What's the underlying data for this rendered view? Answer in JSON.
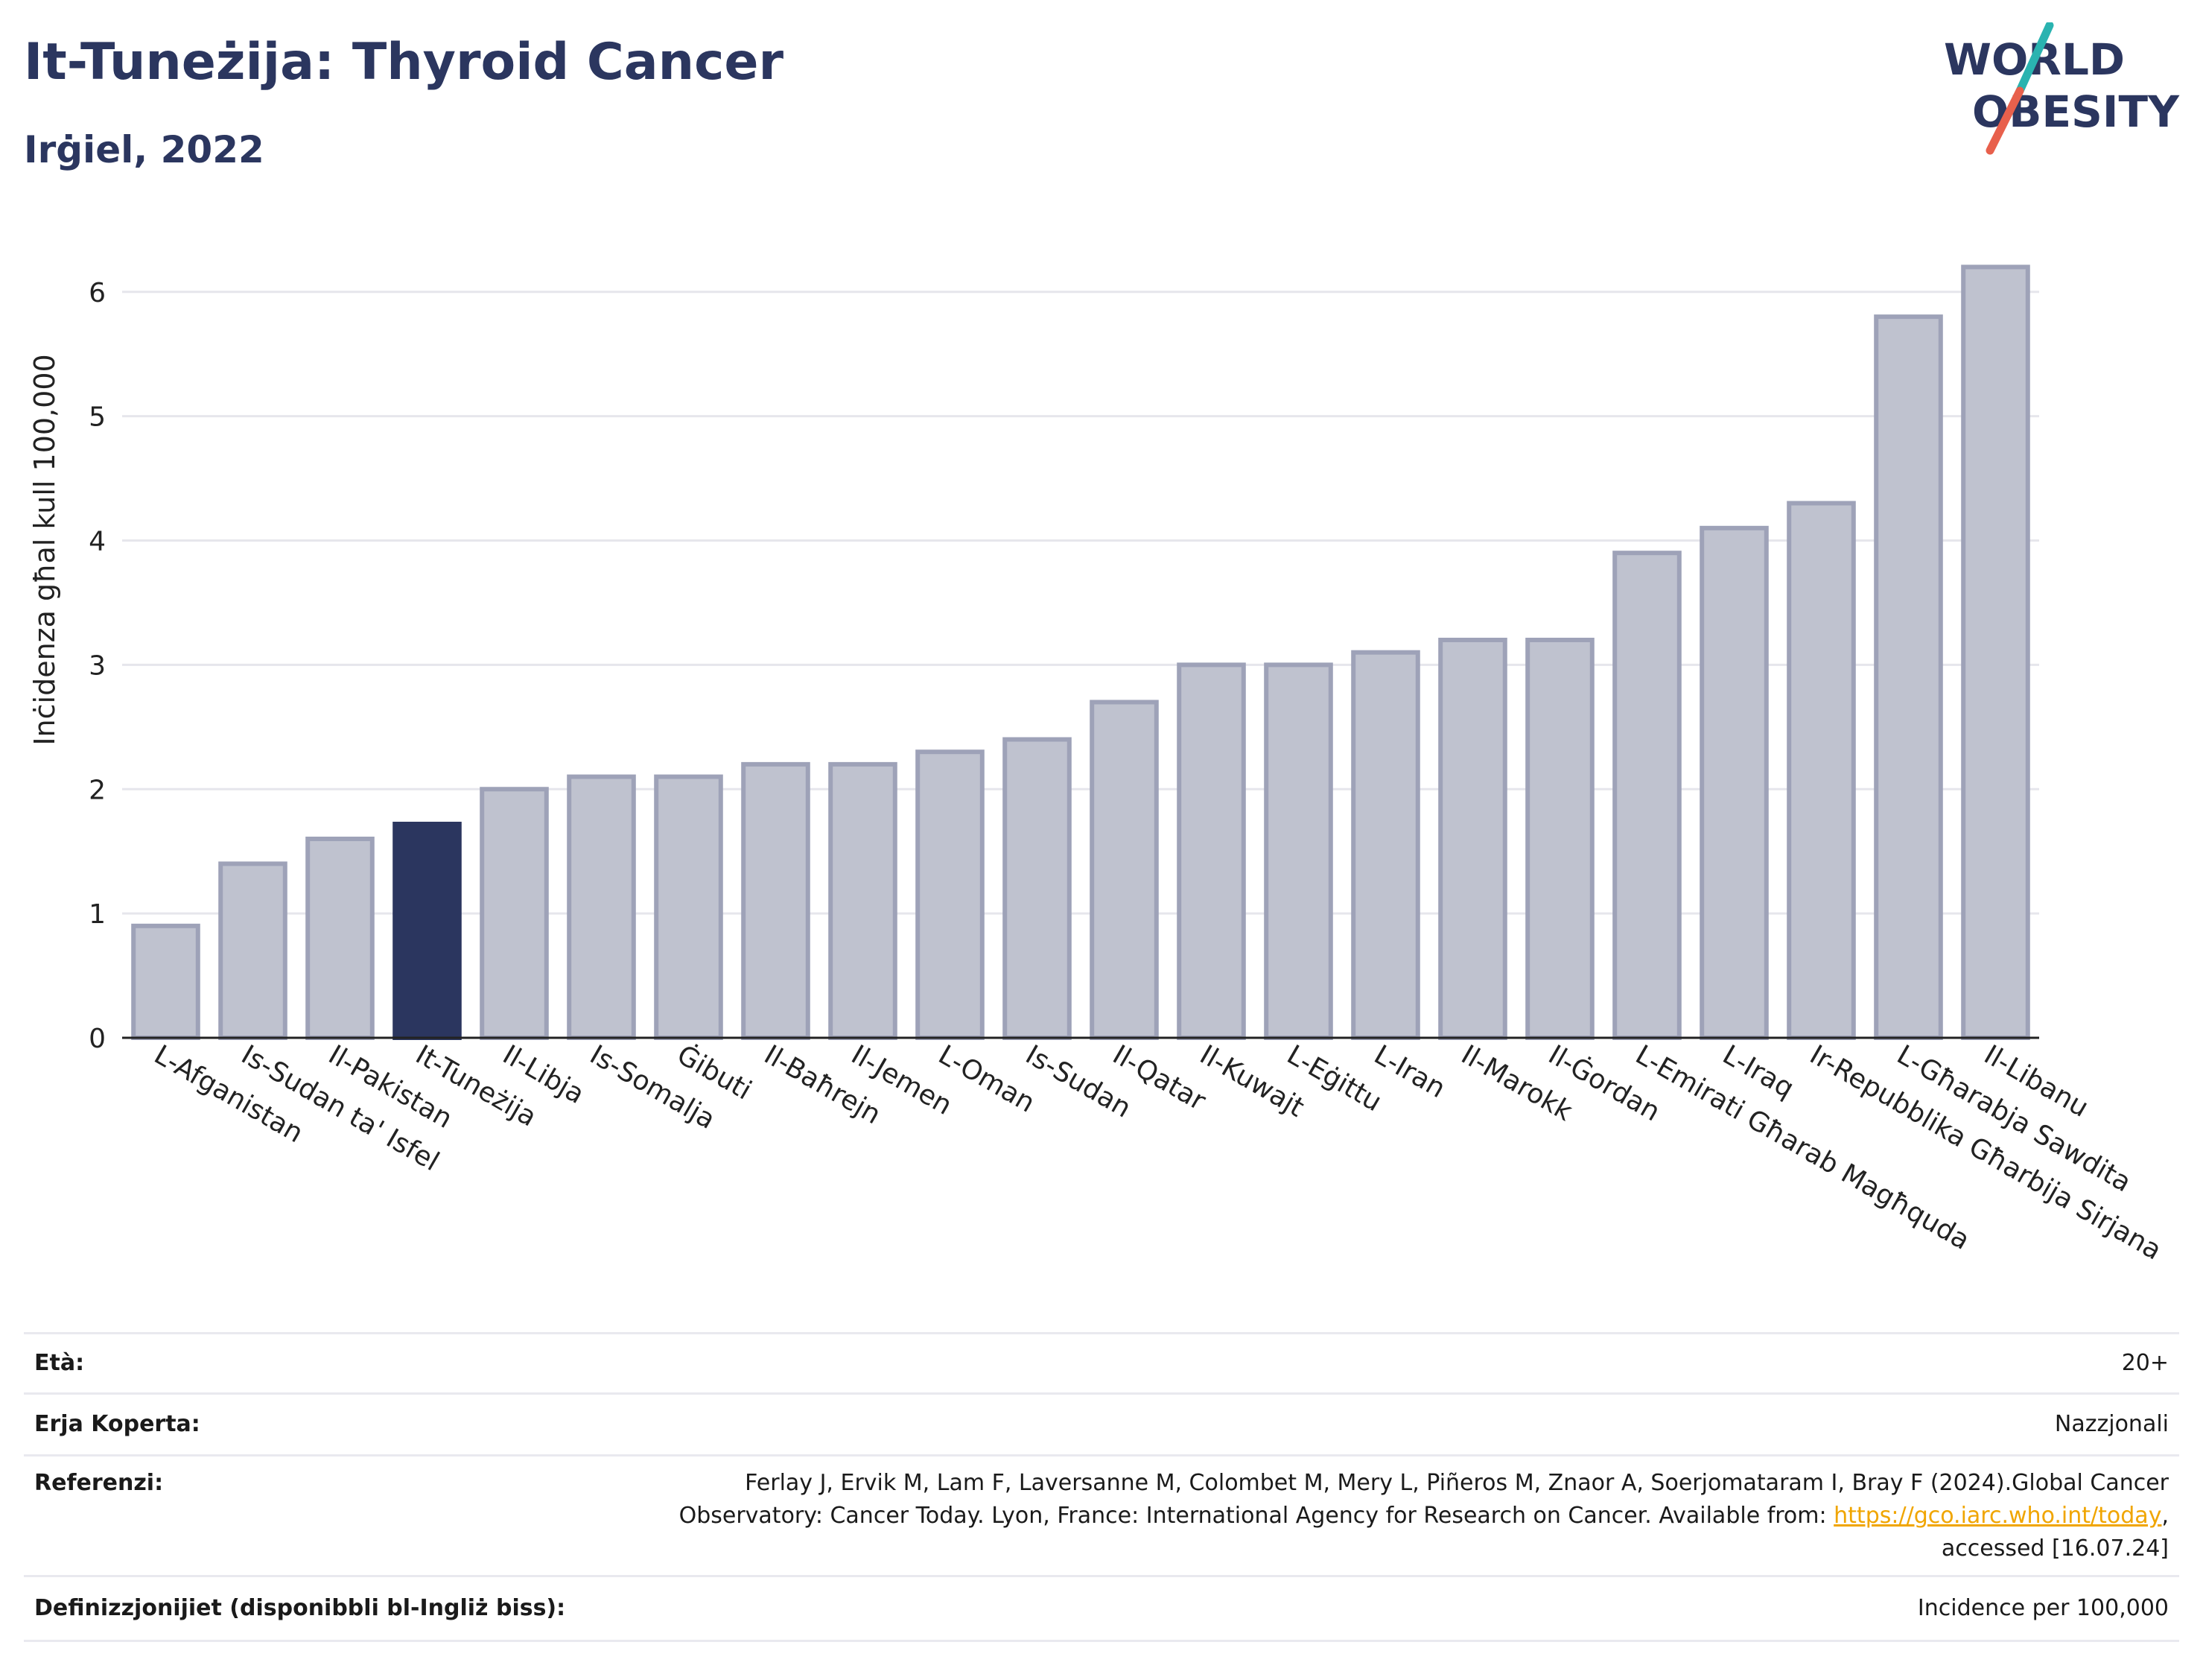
{
  "header": {
    "title": "It-Tuneżija: Thyroid Cancer",
    "subtitle": "Irġiel, 2022"
  },
  "logo": {
    "line1": "WORLD",
    "line2": "OBESITY",
    "slash_colors": [
      "#e8604c",
      "#2ab3b0"
    ],
    "text_color": "#2b365f"
  },
  "colors": {
    "highlight": "#2b365f",
    "bar_fill": "#bfc2cf",
    "bar_stroke": "#9ea2b8",
    "grid": "#e6e6ec"
  },
  "chart_data": {
    "type": "bar",
    "title": "It-Tuneżija: Thyroid Cancer",
    "subtitle": "Irġiel, 2022",
    "xlabel": "",
    "ylabel": "Inċidenza għal kull 100,000",
    "ylim": [
      0,
      6.4
    ],
    "yticks": [
      0,
      1,
      2,
      3,
      4,
      5,
      6
    ],
    "grid": true,
    "highlight_category": "It-Tuneżija",
    "categories": [
      "L-Afganistan",
      "Is-Sudan ta' Isfel",
      "Il-Pakistan",
      "It-Tuneżija",
      "Il-Libja",
      "Is-Somalja",
      "Ġibuti",
      "Il-Baħrejn",
      "Il-Jemen",
      "L-Oman",
      "Is-Sudan",
      "Il-Qatar",
      "Il-Kuwajt",
      "L-Eġittu",
      "L-Iran",
      "Il-Marokk",
      "Il-Ġordan",
      "L-Emirati Għarab Magħquda",
      "L-Iraq",
      "Ir-Repubblika Għarbija Sirjana",
      "L-Għarabja Sawdita",
      "Il-Libanu"
    ],
    "values": [
      0.9,
      1.4,
      1.6,
      1.72,
      2.0,
      2.1,
      2.1,
      2.2,
      2.2,
      2.3,
      2.4,
      2.7,
      3.0,
      3.0,
      3.1,
      3.2,
      3.2,
      3.9,
      4.1,
      4.3,
      5.8,
      6.2
    ]
  },
  "meta": {
    "age_label": "Età:",
    "age_value": "20+",
    "area_label": "Erja Koperta:",
    "area_value": "Nazzjonali",
    "ref_label": "Referenzi:",
    "ref_text_1": "Ferlay J, Ervik M, Lam F, Laversanne M, Colombet M, Mery L, Piñeros M, Znaor A, Soerjomataram I, Bray F (2024).Global Cancer",
    "ref_text_2": "Observatory: Cancer Today. Lyon, France: International Agency for Research on Cancer. Available from: ",
    "ref_link": "https://gco.iarc.who.int/today",
    "ref_text_3": ",",
    "ref_text_4": "accessed [16.07.24]",
    "def_label": "Definizzjonijiet (disponibbli bl-Ingliż biss):",
    "def_value": "Incidence per 100,000"
  }
}
